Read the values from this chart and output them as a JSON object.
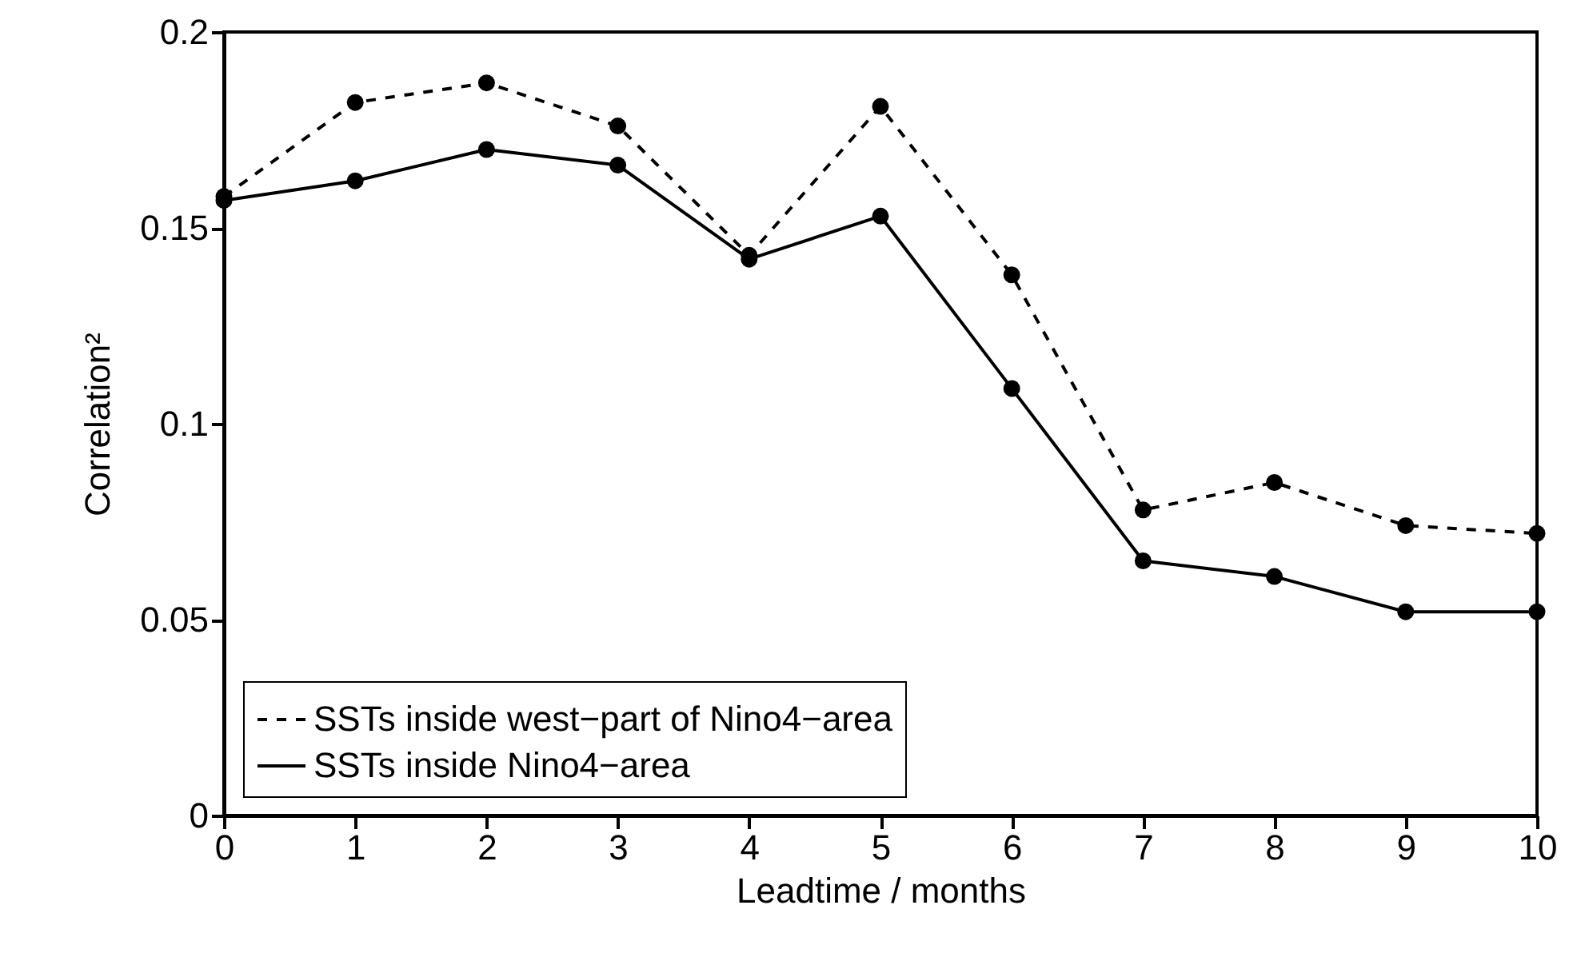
{
  "chart_data": {
    "type": "line",
    "xlabel": "Leadtime / months",
    "ylabel": "Correlation²",
    "x": [
      0,
      1,
      2,
      3,
      4,
      5,
      6,
      7,
      8,
      9,
      10
    ],
    "series": [
      {
        "name": "SSTs inside west−part of Nino4−area",
        "color": "#000000",
        "line_style": "dashed",
        "values": [
          0.158,
          0.182,
          0.187,
          0.176,
          0.143,
          0.181,
          0.138,
          0.078,
          0.085,
          0.074,
          0.072
        ]
      },
      {
        "name": "SSTs inside Nino4−area",
        "color": "#000000",
        "line_style": "solid",
        "values": [
          0.157,
          0.162,
          0.17,
          0.166,
          0.142,
          0.153,
          0.109,
          0.065,
          0.061,
          0.052,
          0.052
        ]
      }
    ],
    "xlim": [
      0,
      10
    ],
    "xticks": [
      0,
      1,
      2,
      3,
      4,
      5,
      6,
      7,
      8,
      9,
      10
    ],
    "ylim": [
      0,
      0.2
    ],
    "yticks": [
      0,
      0.05,
      0.1,
      0.15,
      0.2
    ],
    "marker": "circle",
    "legend": "bottom left"
  }
}
